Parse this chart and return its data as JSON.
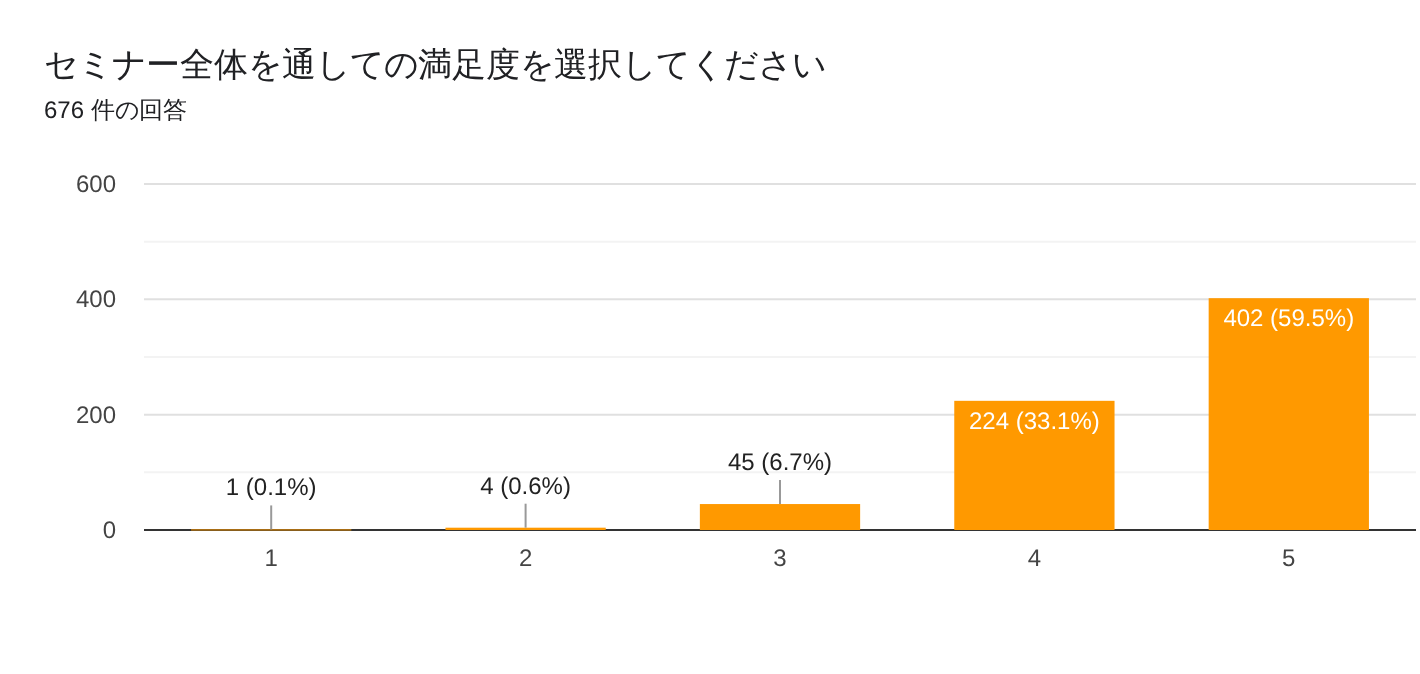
{
  "chart_data": {
    "type": "bar",
    "title": "セミナー全体を通しての満足度を選択してください",
    "subtitle": "676 件の回答",
    "categories": [
      "1",
      "2",
      "3",
      "4",
      "5"
    ],
    "values": [
      1,
      4,
      45,
      224,
      402
    ],
    "value_labels": [
      "1 (0.1%)",
      "4 (0.6%)",
      "45 (6.7%)",
      "224 (33.1%)",
      "402 (59.5%)"
    ],
    "color": "#ff9900",
    "ylim": [
      0,
      600
    ],
    "yticks": [
      0,
      {
        "value": 100,
        "label": null
      },
      200,
      {
        "value": 300,
        "label": null
      },
      400,
      {
        "value": 500,
        "label": null
      },
      600
    ],
    "grid": "y"
  }
}
